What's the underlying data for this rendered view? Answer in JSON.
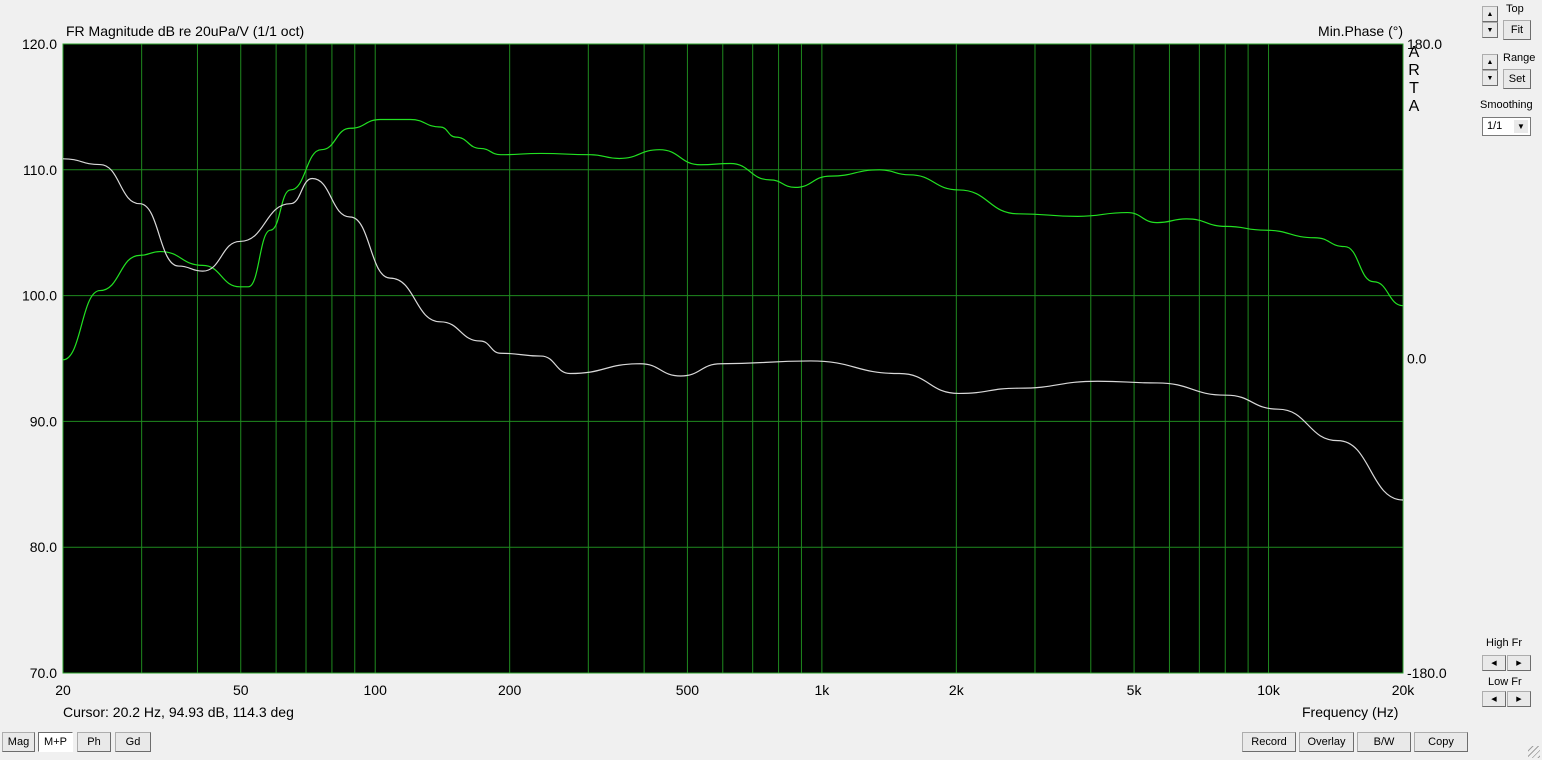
{
  "chart_data": {
    "type": "line",
    "title": "FR Magnitude dB re 20uPa/V (1/1 oct)",
    "right_title": "Min.Phase (°)",
    "xlabel": "Frequency (Hz)",
    "xscale": "log",
    "xlim": [
      20,
      20000
    ],
    "ylim": [
      70,
      120
    ],
    "y2lim": [
      -180,
      180
    ],
    "grid": true,
    "x_ticks": [
      "20",
      "50",
      "100",
      "200",
      "500",
      "1k",
      "2k",
      "5k",
      "10k",
      "20k"
    ],
    "y_ticks": [
      "120.0",
      "110.0",
      "100.0",
      "90.0",
      "80.0",
      "70.0"
    ],
    "y2_ticks": [
      "180.0",
      "0.0",
      "-180.0"
    ],
    "background": "#000000",
    "grid_color": "#1f8a1f",
    "series": [
      {
        "axis": "left",
        "color": "#22e022",
        "points": [
          [
            20,
            94.9
          ],
          [
            24.2,
            100.4
          ],
          [
            29.7,
            103.2
          ],
          [
            33,
            103.5
          ],
          [
            41.1,
            102.4
          ],
          [
            49.8,
            100.7
          ],
          [
            52,
            100.7
          ],
          [
            58.3,
            105.2
          ],
          [
            64.6,
            108.4
          ],
          [
            75.8,
            111.6
          ],
          [
            87.9,
            113.3
          ],
          [
            102.7,
            114.0
          ],
          [
            119.9,
            114.0
          ],
          [
            139.9,
            113.4
          ],
          [
            151.5,
            112.6
          ],
          [
            171.9,
            111.7
          ],
          [
            191,
            111.2
          ],
          [
            235,
            111.3
          ],
          [
            303,
            111.2
          ],
          [
            352,
            110.9
          ],
          [
            433,
            111.6
          ],
          [
            535,
            110.4
          ],
          [
            624,
            110.5
          ],
          [
            765,
            109.2
          ],
          [
            871,
            108.6
          ],
          [
            1044,
            109.5
          ],
          [
            1346,
            110.0
          ],
          [
            1570,
            109.6
          ],
          [
            2025,
            108.4
          ],
          [
            2755,
            106.5
          ],
          [
            3741,
            106.3
          ],
          [
            4830,
            106.6
          ],
          [
            5630,
            105.8
          ],
          [
            6550,
            106.1
          ],
          [
            8040,
            105.5
          ],
          [
            9830,
            105.2
          ],
          [
            12700,
            104.6
          ],
          [
            14800,
            103.9
          ],
          [
            17200,
            101.1
          ],
          [
            20000,
            99.2
          ]
        ]
      },
      {
        "axis": "right",
        "color": "#d8d8d8",
        "points": [
          [
            20,
            114.3
          ],
          [
            24.2,
            111
          ],
          [
            29.7,
            88.6
          ],
          [
            36.3,
            52.9
          ],
          [
            41.1,
            50
          ],
          [
            49.8,
            67
          ],
          [
            64.6,
            88.6
          ],
          [
            72.3,
            103
          ],
          [
            87.9,
            81
          ],
          [
            108,
            46
          ],
          [
            139.9,
            21
          ],
          [
            171.9,
            10
          ],
          [
            191,
            3
          ],
          [
            235,
            1.4
          ],
          [
            273,
            -8.6
          ],
          [
            392,
            -3
          ],
          [
            483,
            -10
          ],
          [
            594,
            -3
          ],
          [
            943,
            -1.4
          ],
          [
            1490,
            -8.6
          ],
          [
            2025,
            -20
          ],
          [
            2755,
            -17
          ],
          [
            4150,
            -13
          ],
          [
            5630,
            -14
          ],
          [
            8040,
            -21
          ],
          [
            10500,
            -29
          ],
          [
            14300,
            -47
          ],
          [
            20000,
            -81
          ]
        ]
      }
    ]
  },
  "logo_letters": "ARTA",
  "cursor_readout": "Cursor: 20.2 Hz, 94.93 dB, 114.3 deg",
  "side": {
    "top_label": "Top",
    "fit": "Fit",
    "range_label": "Range",
    "set": "Set",
    "smoothing_label": "Smoothing",
    "smoothing_value": "1/1",
    "high_fr": "High Fr",
    "low_fr": "Low Fr"
  },
  "view_tabs": [
    {
      "label": "Mag",
      "active": false
    },
    {
      "label": "M+P",
      "active": true
    },
    {
      "label": "Ph",
      "active": false
    },
    {
      "label": "Gd",
      "active": false
    }
  ],
  "actions": {
    "record": "Record",
    "overlay": "Overlay",
    "bw": "B/W",
    "copy": "Copy"
  }
}
